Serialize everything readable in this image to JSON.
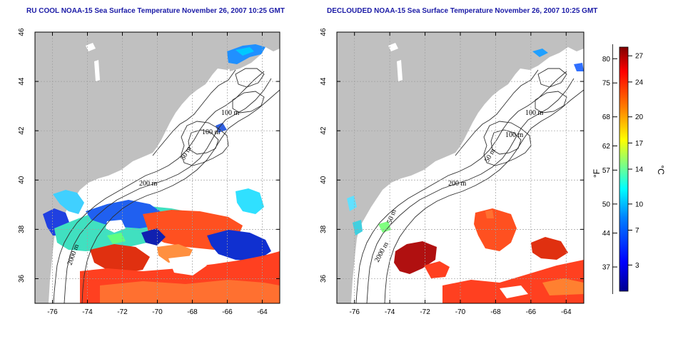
{
  "panels": [
    {
      "id": "left",
      "title": "RU COOL NOAA-15 Sea Surface Temperature November 26, 2007 10:25 GMT",
      "contour_labels": [
        "100 m",
        "100 m",
        "50 m",
        "200 m",
        "2000 m"
      ]
    },
    {
      "id": "right",
      "title": "DECLOUDED NOAA-15 Sea Surface Temperature November 26, 2007 10:25 GMT",
      "contour_labels": [
        "100 m",
        "100 m",
        "50 m",
        "200 m",
        "50 m",
        "2000 m"
      ]
    }
  ],
  "axes": {
    "x_ticks": [
      "-76",
      "-74",
      "-72",
      "-70",
      "-68",
      "-66",
      "-64"
    ],
    "y_ticks": [
      "46",
      "44",
      "42",
      "40",
      "38",
      "36"
    ],
    "xlim": [
      -77,
      -63
    ],
    "ylim": [
      35,
      46
    ]
  },
  "colorbar": {
    "fahrenheit_label": "°F",
    "celsius_label": "°C",
    "fahrenheit_ticks": [
      "80",
      "75",
      "68",
      "62",
      "57",
      "50",
      "44",
      "37"
    ],
    "celsius_ticks": [
      "27",
      "24",
      "20",
      "17",
      "14",
      "10",
      "7",
      "3"
    ],
    "range_celsius": [
      0,
      28
    ],
    "colors": [
      "#00008f",
      "#0000ff",
      "#0080ff",
      "#00ffff",
      "#80ff80",
      "#ffff00",
      "#ff8000",
      "#ff0000",
      "#800000"
    ]
  },
  "colors": {
    "land": "#c0c0c0",
    "ocean": "#ffffff",
    "title": "#1a1aa6",
    "grid": "#a0a0a0"
  }
}
